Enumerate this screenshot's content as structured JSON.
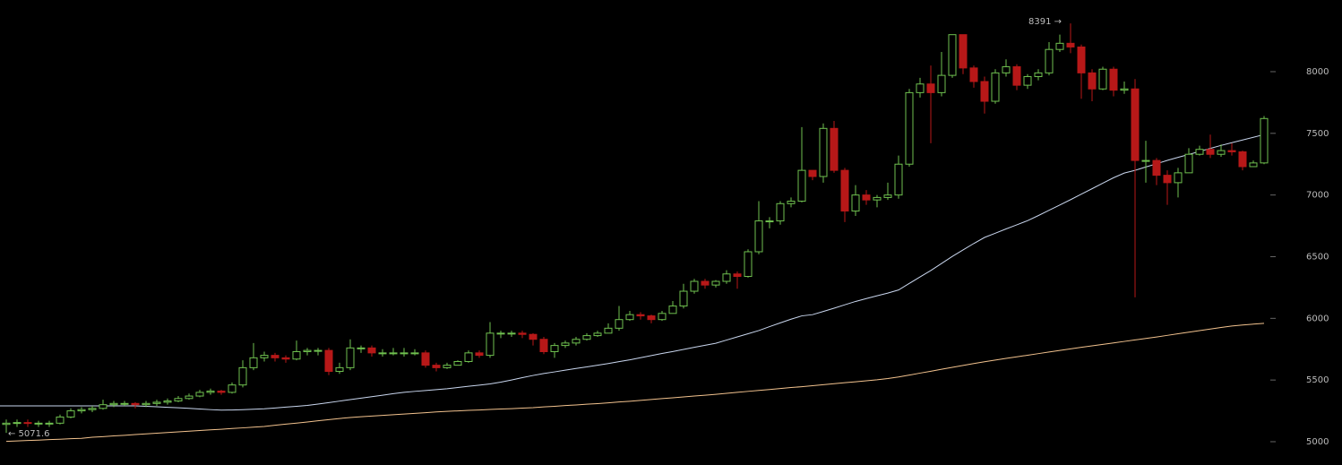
{
  "chart_data": {
    "type": "candlestick",
    "up_color": "#6fc04f",
    "down_color": "#b71818",
    "open": [
      5140,
      5150,
      5155,
      5150,
      5150,
      5150,
      5200,
      5250,
      5260,
      5270,
      5300,
      5310,
      5310,
      5300,
      5310,
      5320,
      5330,
      5350,
      5370,
      5400,
      5410,
      5400,
      5460,
      5600,
      5680,
      5700,
      5680,
      5670,
      5730,
      5740,
      5740,
      5570,
      5600,
      5760,
      5760,
      5720,
      5720,
      5720,
      5720,
      5720,
      5620,
      5600,
      5620,
      5650,
      5720,
      5700,
      5880,
      5880,
      5880,
      5870,
      5830,
      5730,
      5780,
      5800,
      5830,
      5860,
      5880,
      5920,
      5990,
      6030,
      6020,
      5990,
      6040,
      6100,
      6220,
      6300,
      6270,
      6300,
      6360,
      6340,
      6540,
      6790,
      6790,
      6930,
      6950,
      7200,
      7150,
      7540,
      7200,
      6870,
      7000,
      6960,
      6980,
      7000,
      7250,
      7830,
      7900,
      7830,
      7970,
      8300,
      8030,
      7920,
      7760,
      7990,
      8040,
      7890,
      7960,
      7990,
      8180,
      8230,
      8200,
      7990,
      7860,
      8020,
      7850,
      7860,
      7280,
      7280,
      7160,
      7100,
      7180,
      7330,
      7370,
      7330,
      7360,
      7350,
      7230,
      7260
    ],
    "high": [
      5180,
      5180,
      5180,
      5170,
      5170,
      5220,
      5270,
      5280,
      5290,
      5340,
      5330,
      5330,
      5320,
      5330,
      5340,
      5350,
      5370,
      5390,
      5420,
      5430,
      5420,
      5480,
      5660,
      5800,
      5730,
      5720,
      5700,
      5820,
      5760,
      5760,
      5760,
      5640,
      5830,
      5780,
      5780,
      5750,
      5760,
      5760,
      5750,
      5740,
      5640,
      5640,
      5660,
      5740,
      5740,
      5970,
      5900,
      5900,
      5900,
      5880,
      5850,
      5800,
      5820,
      5850,
      5880,
      5900,
      5960,
      6100,
      6060,
      6050,
      6030,
      6060,
      6140,
      6280,
      6320,
      6320,
      6310,
      6390,
      6380,
      6560,
      6950,
      6820,
      6950,
      6980,
      7550,
      7200,
      7580,
      7600,
      7220,
      7080,
      7040,
      7000,
      7100,
      7320,
      7860,
      7950,
      8050,
      8160,
      8300,
      8300,
      8050,
      7960,
      8020,
      8100,
      8060,
      7980,
      8020,
      8240,
      8300,
      8391,
      8220,
      8020,
      8040,
      8040,
      7920,
      7940,
      7440,
      7300,
      7200,
      7220,
      7380,
      7400,
      7490,
      7410,
      7420,
      7360,
      7280,
      7640
    ],
    "low": [
      5071.6,
      5120,
      5120,
      5120,
      5120,
      5140,
      5190,
      5230,
      5240,
      5260,
      5280,
      5290,
      5270,
      5280,
      5290,
      5300,
      5320,
      5340,
      5360,
      5380,
      5380,
      5390,
      5440,
      5580,
      5650,
      5650,
      5640,
      5660,
      5700,
      5700,
      5540,
      5550,
      5580,
      5720,
      5690,
      5690,
      5700,
      5690,
      5700,
      5600,
      5570,
      5590,
      5620,
      5640,
      5680,
      5680,
      5840,
      5850,
      5840,
      5780,
      5710,
      5680,
      5760,
      5780,
      5820,
      5850,
      5880,
      5900,
      5980,
      5990,
      5960,
      5980,
      6040,
      6080,
      6200,
      6240,
      6250,
      6280,
      6240,
      6330,
      6520,
      6730,
      6760,
      6900,
      6940,
      7120,
      7100,
      7180,
      6780,
      6830,
      6920,
      6900,
      6960,
      6970,
      7230,
      7790,
      7420,
      7800,
      7950,
      7980,
      7870,
      7660,
      7740,
      7960,
      7850,
      7860,
      7930,
      7970,
      8160,
      8150,
      7780,
      7760,
      7850,
      7800,
      7820,
      6170,
      7100,
      7080,
      6920,
      6980,
      7180,
      7320,
      7300,
      7310,
      7320,
      7200,
      7230,
      7250
    ],
    "close": [
      5150,
      5155,
      5150,
      5150,
      5150,
      5200,
      5250,
      5260,
      5270,
      5300,
      5310,
      5310,
      5300,
      5310,
      5320,
      5330,
      5350,
      5370,
      5400,
      5410,
      5400,
      5460,
      5600,
      5680,
      5700,
      5680,
      5670,
      5730,
      5740,
      5740,
      5570,
      5600,
      5760,
      5760,
      5720,
      5720,
      5720,
      5720,
      5720,
      5620,
      5600,
      5620,
      5650,
      5720,
      5700,
      5880,
      5880,
      5880,
      5870,
      5830,
      5730,
      5780,
      5800,
      5830,
      5860,
      5880,
      5920,
      5990,
      6030,
      6020,
      5990,
      6040,
      6100,
      6220,
      6300,
      6270,
      6300,
      6360,
      6340,
      6540,
      6790,
      6790,
      6930,
      6950,
      7200,
      7150,
      7540,
      7200,
      6870,
      7000,
      6960,
      6980,
      7000,
      7250,
      7830,
      7900,
      7830,
      7970,
      8300,
      8030,
      7920,
      7760,
      7990,
      8040,
      7890,
      7960,
      7990,
      8180,
      8230,
      8200,
      7990,
      7860,
      8020,
      7850,
      7860,
      7280,
      7280,
      7160,
      7100,
      7180,
      7330,
      7370,
      7330,
      7360,
      7350,
      7230,
      7260,
      7620
    ],
    "lines": [
      {
        "color": "#c9d6ee",
        "values": [
          5290,
          5290,
          5290,
          5290,
          5290,
          5290,
          5290,
          5290,
          5290,
          5290,
          5290,
          5290,
          5290,
          5287,
          5283,
          5279,
          5275,
          5270,
          5265,
          5260,
          5256,
          5257,
          5260,
          5263,
          5267,
          5273,
          5280,
          5287,
          5294,
          5305,
          5317,
          5329,
          5341,
          5353,
          5365,
          5377,
          5389,
          5400,
          5408,
          5415,
          5422,
          5429,
          5439,
          5449,
          5458,
          5468,
          5483,
          5500,
          5519,
          5537,
          5553,
          5566,
          5580,
          5594,
          5606,
          5620,
          5634,
          5649,
          5664,
          5681,
          5698,
          5715,
          5731,
          5748,
          5765,
          5782,
          5798,
          5824,
          5850,
          5875,
          5901,
          5933,
          5963,
          5993,
          6020,
          6030,
          6056,
          6082,
          6110,
          6137,
          6160,
          6183,
          6205,
          6230,
          6283,
          6336,
          6388,
          6445,
          6502,
          6555,
          6607,
          6656,
          6690,
          6725,
          6758,
          6792,
          6833,
          6876,
          6919,
          6962,
          7007,
          7051,
          7096,
          7140,
          7178,
          7200,
          7227,
          7253,
          7281,
          7305,
          7329,
          7353,
          7378,
          7402,
          7424,
          7446,
          7468,
          7490
        ]
      },
      {
        "color": "#f2c28e",
        "values": [
          5003,
          5006,
          5010,
          5013,
          5017,
          5020,
          5024,
          5027,
          5036,
          5041,
          5047,
          5052,
          5058,
          5063,
          5069,
          5074,
          5080,
          5085,
          5091,
          5096,
          5101,
          5107,
          5112,
          5118,
          5123,
          5133,
          5142,
          5151,
          5160,
          5170,
          5179,
          5188,
          5196,
          5202,
          5208,
          5213,
          5219,
          5224,
          5230,
          5235,
          5241,
          5246,
          5250,
          5254,
          5257,
          5261,
          5265,
          5268,
          5272,
          5276,
          5282,
          5287,
          5293,
          5298,
          5304,
          5309,
          5315,
          5322,
          5328,
          5335,
          5342,
          5349,
          5356,
          5363,
          5370,
          5377,
          5384,
          5392,
          5400,
          5408,
          5416,
          5423,
          5431,
          5439,
          5446,
          5454,
          5462,
          5470,
          5478,
          5486,
          5494,
          5502,
          5512,
          5525,
          5540,
          5556,
          5571,
          5587,
          5603,
          5618,
          5634,
          5648,
          5662,
          5675,
          5688,
          5701,
          5714,
          5727,
          5740,
          5753,
          5765,
          5777,
          5789,
          5801,
          5813,
          5825,
          5837,
          5849,
          5862,
          5875,
          5888,
          5901,
          5913,
          5926,
          5938,
          5946,
          5953,
          5960
        ]
      }
    ],
    "annotations": {
      "high": "8391 →",
      "low": "← 5071.6"
    },
    "ylim": [
      4811,
      8581
    ],
    "yticks": [
      5000,
      5500,
      6000,
      6500,
      7000,
      7500,
      8000
    ]
  }
}
